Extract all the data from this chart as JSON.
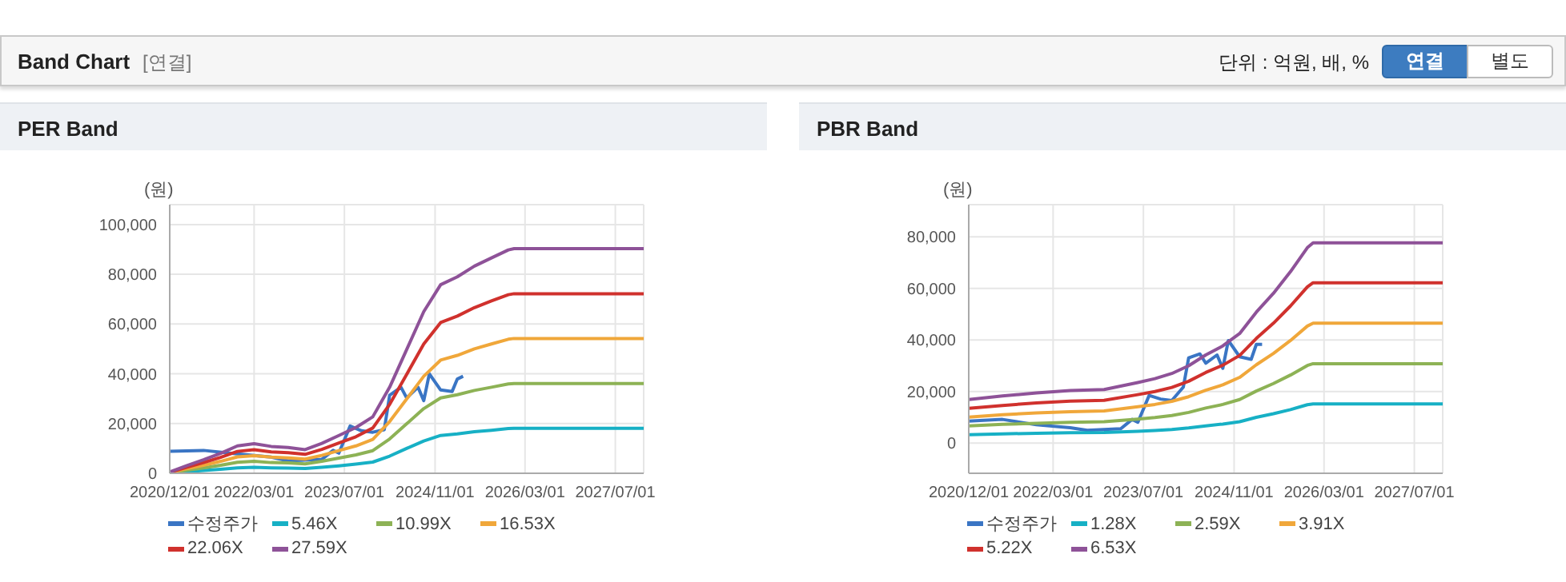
{
  "chart_data": [
    {
      "type": "other",
      "title": "Band Chart",
      "annotations": [
        "[연결]",
        "단위 : 억원, 배, %",
        "연결",
        "별도"
      ]
    },
    {
      "type": "line",
      "title": "PER Band",
      "ylabel": "(원)",
      "xlim": [
        "2020-12-01",
        "2027-12-01"
      ],
      "xticks": [
        {
          "value": "2020-12-01",
          "label": "2020/12/01"
        },
        {
          "value": "2022-03-01",
          "label": "2022/03/01"
        },
        {
          "value": "2023-07-01",
          "label": "2023/07/01"
        },
        {
          "value": "2024-11-01",
          "label": "2024/11/01"
        },
        {
          "value": "2026-03-01",
          "label": "2026/03/01"
        },
        {
          "value": "2027-07-01",
          "label": "2027/07/01"
        }
      ],
      "ylim": [
        0,
        108000
      ],
      "yticks": [
        0,
        {
          "value": 20000,
          "label": "20,000"
        },
        {
          "value": 40000,
          "label": "40,000"
        },
        {
          "value": 60000,
          "label": "60,000"
        },
        {
          "value": 80000,
          "label": "80,000"
        },
        {
          "value": 100000,
          "label": "100,000"
        }
      ],
      "grid": true,
      "legend": "bottom",
      "marker": "none",
      "line_style": "solid",
      "series": [
        {
          "name": "수정주가",
          "color": "#3a75c4",
          "x": [
            "2020-12",
            "2021-06",
            "2021-12",
            "2022-06",
            "2022-09",
            "2023-03",
            "2023-05",
            "2023-06",
            "2023-08",
            "2023-10",
            "2023-12",
            "2024-02",
            "2024-03",
            "2024-05",
            "2024-06",
            "2024-08",
            "2024-09",
            "2024-10",
            "2024-12",
            "2025-02",
            "2025-03",
            "2025-04"
          ],
          "values": [
            8800,
            9200,
            7800,
            6500,
            5000,
            5600,
            9200,
            8100,
            19000,
            17100,
            16500,
            17500,
            31400,
            34600,
            30300,
            34600,
            29200,
            40000,
            33500,
            32900,
            37900,
            39000
          ]
        },
        {
          "name": "5.46X",
          "color": "#17b0c5",
          "x": [
            "2020-12",
            "2021-03",
            "2021-06",
            "2021-09",
            "2021-12",
            "2022-03",
            "2022-06",
            "2022-09",
            "2022-12",
            "2023-03",
            "2023-06",
            "2023-09",
            "2023-12",
            "2024-03",
            "2024-06",
            "2024-09",
            "2024-12",
            "2025-03",
            "2025-06",
            "2025-09",
            "2025-12",
            "2026-01",
            "2027-12"
          ],
          "values": [
            100,
            600,
            1100,
            1600,
            2200,
            2400,
            2200,
            2100,
            1900,
            2400,
            3000,
            3700,
            4500,
            6900,
            10000,
            13000,
            15200,
            15800,
            16700,
            17300,
            18000,
            18100,
            18100
          ]
        },
        {
          "name": "10.99X",
          "color": "#8db255",
          "x": [
            "2020-12",
            "2021-03",
            "2021-06",
            "2021-09",
            "2021-12",
            "2022-03",
            "2022-06",
            "2022-09",
            "2022-12",
            "2023-03",
            "2023-06",
            "2023-09",
            "2023-12",
            "2024-03",
            "2024-06",
            "2024-09",
            "2024-12",
            "2025-03",
            "2025-06",
            "2025-09",
            "2025-12",
            "2026-01",
            "2027-12"
          ],
          "values": [
            200,
            1200,
            2200,
            3200,
            4400,
            4800,
            4300,
            4200,
            3800,
            4800,
            6100,
            7400,
            9100,
            13800,
            19900,
            26000,
            30300,
            31600,
            33300,
            34600,
            35900,
            36100,
            36100
          ]
        },
        {
          "name": "16.53X",
          "color": "#f0a73a",
          "x": [
            "2020-12",
            "2021-03",
            "2021-06",
            "2021-09",
            "2021-12",
            "2022-03",
            "2022-06",
            "2022-09",
            "2022-12",
            "2023-03",
            "2023-06",
            "2023-09",
            "2023-12",
            "2024-03",
            "2024-06",
            "2024-09",
            "2024-12",
            "2025-03",
            "2025-06",
            "2025-09",
            "2025-12",
            "2026-01",
            "2027-12"
          ],
          "values": [
            300,
            1800,
            3200,
            4800,
            6600,
            7100,
            6500,
            6200,
            5700,
            7200,
            9100,
            11000,
            13600,
            20800,
            29900,
            39000,
            45500,
            47400,
            50000,
            52000,
            53900,
            54200,
            54200
          ]
        },
        {
          "name": "22.06X",
          "color": "#d0312d",
          "x": [
            "2020-12",
            "2021-03",
            "2021-06",
            "2021-09",
            "2021-12",
            "2022-03",
            "2022-06",
            "2022-09",
            "2022-12",
            "2023-03",
            "2023-06",
            "2023-09",
            "2023-12",
            "2024-03",
            "2024-06",
            "2024-09",
            "2024-12",
            "2025-03",
            "2025-06",
            "2025-09",
            "2025-12",
            "2026-01",
            "2027-12"
          ],
          "values": [
            400,
            2400,
            4300,
            6400,
            8800,
            9500,
            8600,
            8300,
            7600,
            9600,
            12200,
            14700,
            18200,
            27700,
            39800,
            52000,
            60600,
            63200,
            66600,
            69300,
            71800,
            72200,
            72200
          ]
        },
        {
          "name": "27.59X",
          "color": "#8e5298",
          "x": [
            "2020-12",
            "2021-03",
            "2021-06",
            "2021-09",
            "2021-12",
            "2022-03",
            "2022-06",
            "2022-09",
            "2022-12",
            "2023-03",
            "2023-06",
            "2023-09",
            "2023-12",
            "2024-03",
            "2024-06",
            "2024-09",
            "2024-12",
            "2025-03",
            "2025-06",
            "2025-09",
            "2025-12",
            "2026-01",
            "2027-12"
          ],
          "values": [
            500,
            3000,
            5400,
            8000,
            11000,
            11900,
            10800,
            10400,
            9500,
            12000,
            15200,
            18400,
            22700,
            34600,
            49800,
            65000,
            75800,
            79000,
            83300,
            86600,
            89800,
            90300,
            90300
          ]
        }
      ]
    },
    {
      "type": "line",
      "title": "PBR Band",
      "ylabel": "(원)",
      "xlim": [
        "2020-12-01",
        "2027-12-01"
      ],
      "xticks": [
        {
          "value": "2020-12-01",
          "label": "2020/12/01"
        },
        {
          "value": "2022-03-01",
          "label": "2022/03/01"
        },
        {
          "value": "2023-07-01",
          "label": "2023/07/01"
        },
        {
          "value": "2024-11-01",
          "label": "2024/11/01"
        },
        {
          "value": "2026-03-01",
          "label": "2026/03/01"
        },
        {
          "value": "2027-07-01",
          "label": "2027/07/01"
        }
      ],
      "ylim": [
        -11700,
        92500
      ],
      "yticks": [
        0,
        {
          "value": 20000,
          "label": "20,000"
        },
        {
          "value": 40000,
          "label": "40,000"
        },
        {
          "value": 60000,
          "label": "60,000"
        },
        {
          "value": 80000,
          "label": "80,000"
        }
      ],
      "grid": true,
      "legend": "bottom",
      "marker": "none",
      "line_style": "solid",
      "series": [
        {
          "name": "수정주가",
          "color": "#3a75c4",
          "x": [
            "2020-12",
            "2021-06",
            "2021-12",
            "2022-06",
            "2022-09",
            "2023-03",
            "2023-05",
            "2023-06",
            "2023-08",
            "2023-10",
            "2023-12",
            "2024-02",
            "2024-03",
            "2024-05",
            "2024-06",
            "2024-08",
            "2024-09",
            "2024-10",
            "2024-12",
            "2025-02",
            "2025-03",
            "2025-04"
          ],
          "values": [
            8500,
            9200,
            7100,
            6000,
            5000,
            5600,
            9200,
            8100,
            18500,
            17100,
            16500,
            21700,
            33100,
            34600,
            31000,
            34200,
            29000,
            39800,
            33500,
            32500,
            38300,
            38300
          ]
        },
        {
          "name": "1.28X",
          "color": "#17b0c5",
          "x": [
            "2020-12",
            "2021-06",
            "2021-12",
            "2022-06",
            "2022-12",
            "2023-06",
            "2023-09",
            "2023-12",
            "2024-03",
            "2024-06",
            "2024-09",
            "2024-12",
            "2025-03",
            "2025-06",
            "2025-09",
            "2025-12",
            "2026-01",
            "2027-12"
          ],
          "values": [
            3300,
            3600,
            3800,
            4000,
            4100,
            4600,
            4900,
            5300,
            5900,
            6700,
            7400,
            8300,
            10000,
            11400,
            13000,
            14900,
            15200,
            15200
          ]
        },
        {
          "name": "2.59X",
          "color": "#8db255",
          "x": [
            "2020-12",
            "2021-06",
            "2021-12",
            "2022-06",
            "2022-12",
            "2023-06",
            "2023-09",
            "2023-12",
            "2024-03",
            "2024-06",
            "2024-09",
            "2024-12",
            "2025-03",
            "2025-06",
            "2025-09",
            "2025-12",
            "2026-01",
            "2027-12"
          ],
          "values": [
            6700,
            7300,
            7700,
            8100,
            8300,
            9300,
            9900,
            10700,
            11900,
            13600,
            15000,
            16900,
            20200,
            23100,
            26400,
            30100,
            30800,
            30800
          ]
        },
        {
          "name": "3.91X",
          "color": "#f0a73a",
          "x": [
            "2020-12",
            "2021-06",
            "2021-12",
            "2022-06",
            "2022-12",
            "2023-06",
            "2023-09",
            "2023-12",
            "2024-03",
            "2024-06",
            "2024-09",
            "2024-12",
            "2025-03",
            "2025-06",
            "2025-09",
            "2025-12",
            "2026-01",
            "2027-12"
          ],
          "values": [
            10100,
            11000,
            11700,
            12200,
            12500,
            14100,
            15000,
            16200,
            18000,
            20500,
            22600,
            25500,
            30400,
            34800,
            39800,
            45400,
            46500,
            46500
          ]
        },
        {
          "name": "5.22X",
          "color": "#d0312d",
          "x": [
            "2020-12",
            "2021-06",
            "2021-12",
            "2022-06",
            "2022-12",
            "2023-06",
            "2023-09",
            "2023-12",
            "2024-03",
            "2024-06",
            "2024-09",
            "2024-12",
            "2025-03",
            "2025-06",
            "2025-09",
            "2025-12",
            "2026-01",
            "2027-12"
          ],
          "values": [
            13500,
            14600,
            15600,
            16300,
            16600,
            18800,
            20000,
            21600,
            24000,
            27400,
            30200,
            34000,
            40600,
            46500,
            53200,
            60600,
            62200,
            62200
          ]
        },
        {
          "name": "6.53X",
          "color": "#8e5298",
          "x": [
            "2020-12",
            "2021-06",
            "2021-12",
            "2022-06",
            "2022-12",
            "2023-06",
            "2023-09",
            "2023-12",
            "2024-03",
            "2024-06",
            "2024-09",
            "2024-12",
            "2025-03",
            "2025-06",
            "2025-09",
            "2025-12",
            "2026-01",
            "2027-12"
          ],
          "values": [
            16900,
            18300,
            19500,
            20400,
            20800,
            23500,
            25000,
            27000,
            30000,
            34200,
            37700,
            42500,
            50800,
            58100,
            66500,
            75800,
            77700,
            77700
          ]
        }
      ]
    }
  ]
}
